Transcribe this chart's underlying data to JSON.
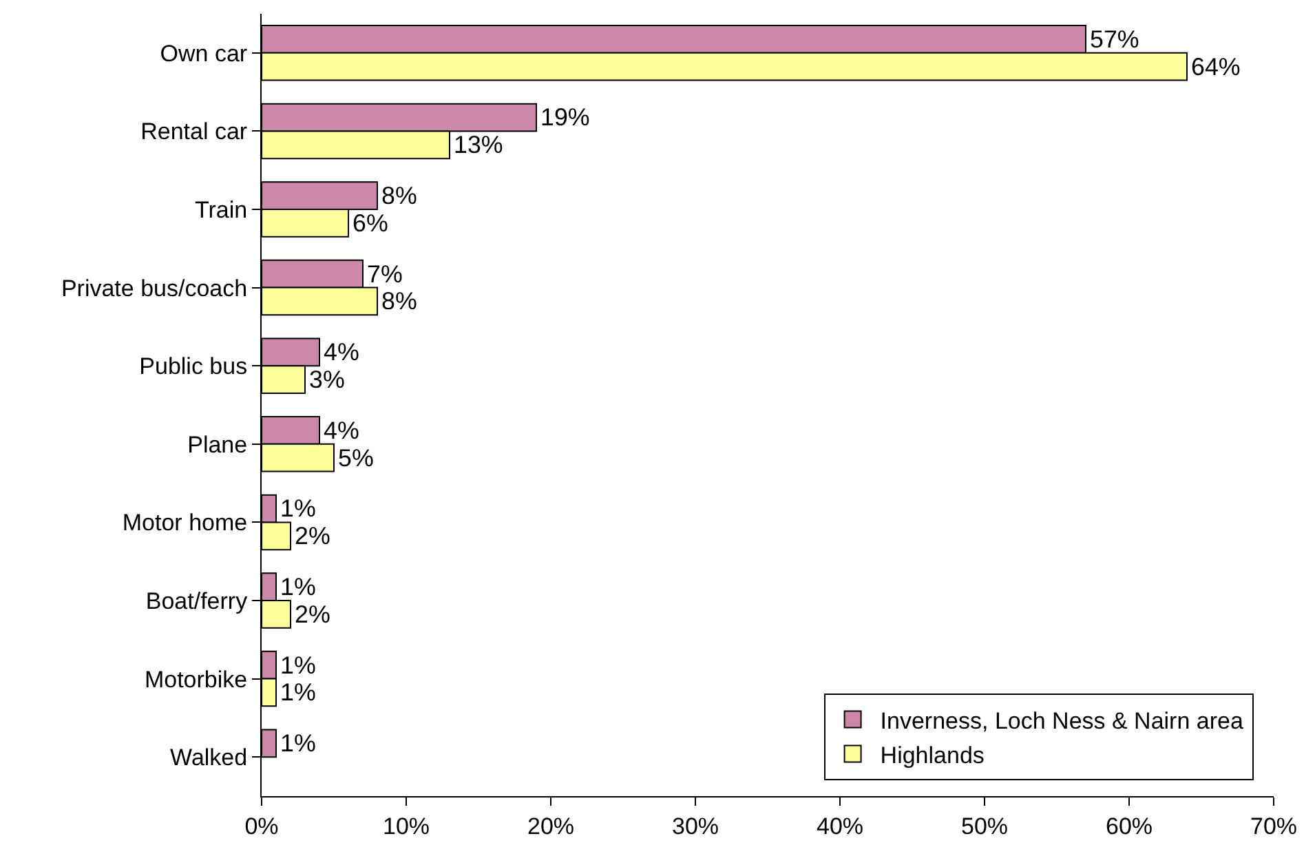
{
  "chart_data": {
    "type": "bar",
    "orientation": "horizontal",
    "categories": [
      "Own car",
      "Rental car",
      "Train",
      "Private bus/coach",
      "Public bus",
      "Plane",
      "Motor home",
      "Boat/ferry",
      "Motorbike",
      "Walked"
    ],
    "series": [
      {
        "name": "Inverness, Loch Ness & Nairn area",
        "color": "#cc88aa",
        "values": [
          57,
          19,
          8,
          7,
          4,
          4,
          1,
          1,
          1,
          1
        ],
        "value_labels": [
          "57%",
          "19%",
          "8%",
          "7%",
          "4%",
          "4%",
          "1%",
          "1%",
          "1%",
          "1%"
        ]
      },
      {
        "name": "Highlands",
        "color": "#ffff99",
        "values": [
          64,
          13,
          6,
          8,
          3,
          5,
          2,
          2,
          1,
          null
        ],
        "value_labels": [
          "64%",
          "13%",
          "6%",
          "8%",
          "3%",
          "5%",
          "2%",
          "2%",
          "1%",
          null
        ]
      }
    ],
    "xlim": [
      0,
      70
    ],
    "xticks": [
      {
        "value": 0,
        "label": "0%"
      },
      {
        "value": 10,
        "label": "10%"
      },
      {
        "value": 20,
        "label": "20%"
      },
      {
        "value": 30,
        "label": "30%"
      },
      {
        "value": 40,
        "label": "40%"
      },
      {
        "value": 50,
        "label": "50%"
      },
      {
        "value": 60,
        "label": "60%"
      },
      {
        "value": 70,
        "label": "70%"
      }
    ],
    "legend": "bottom right",
    "grid": false
  }
}
